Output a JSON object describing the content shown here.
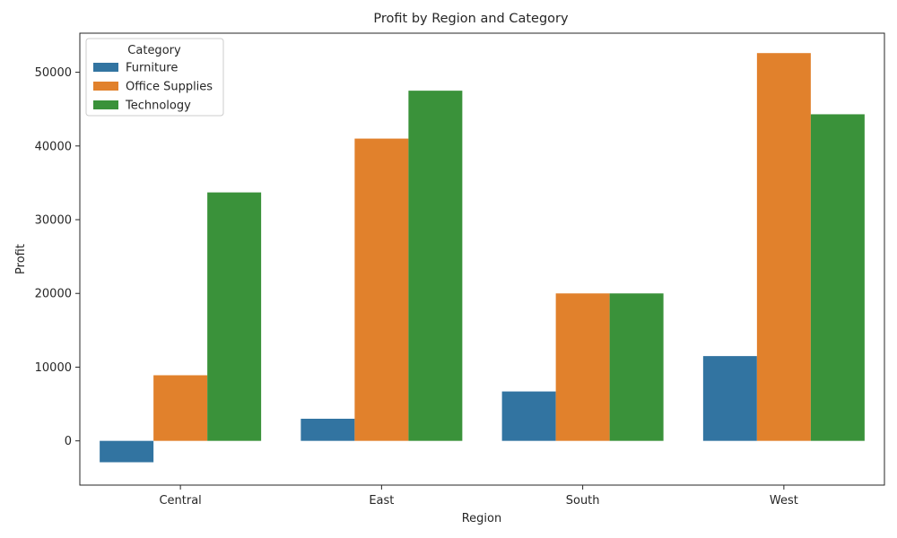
{
  "chart_data": {
    "type": "bar",
    "title": "Profit by Region and Category",
    "xlabel": "Region",
    "ylabel": "Profit",
    "categories": [
      "Central",
      "East",
      "South",
      "West"
    ],
    "series": [
      {
        "name": "Furniture",
        "color": "#3274a1",
        "values": [
          -2900,
          3000,
          6700,
          11500
        ]
      },
      {
        "name": "Office Supplies",
        "color": "#e1812c",
        "values": [
          8900,
          41000,
          20000,
          52600
        ]
      },
      {
        "name": "Technology",
        "color": "#3a923a",
        "values": [
          33700,
          47500,
          20000,
          44300
        ]
      }
    ],
    "ylim": [
      -6000,
      55300
    ],
    "yticks": [
      0,
      10000,
      20000,
      30000,
      40000,
      50000
    ],
    "legend": {
      "title": "Category",
      "position": "top-left"
    },
    "grid": false
  }
}
